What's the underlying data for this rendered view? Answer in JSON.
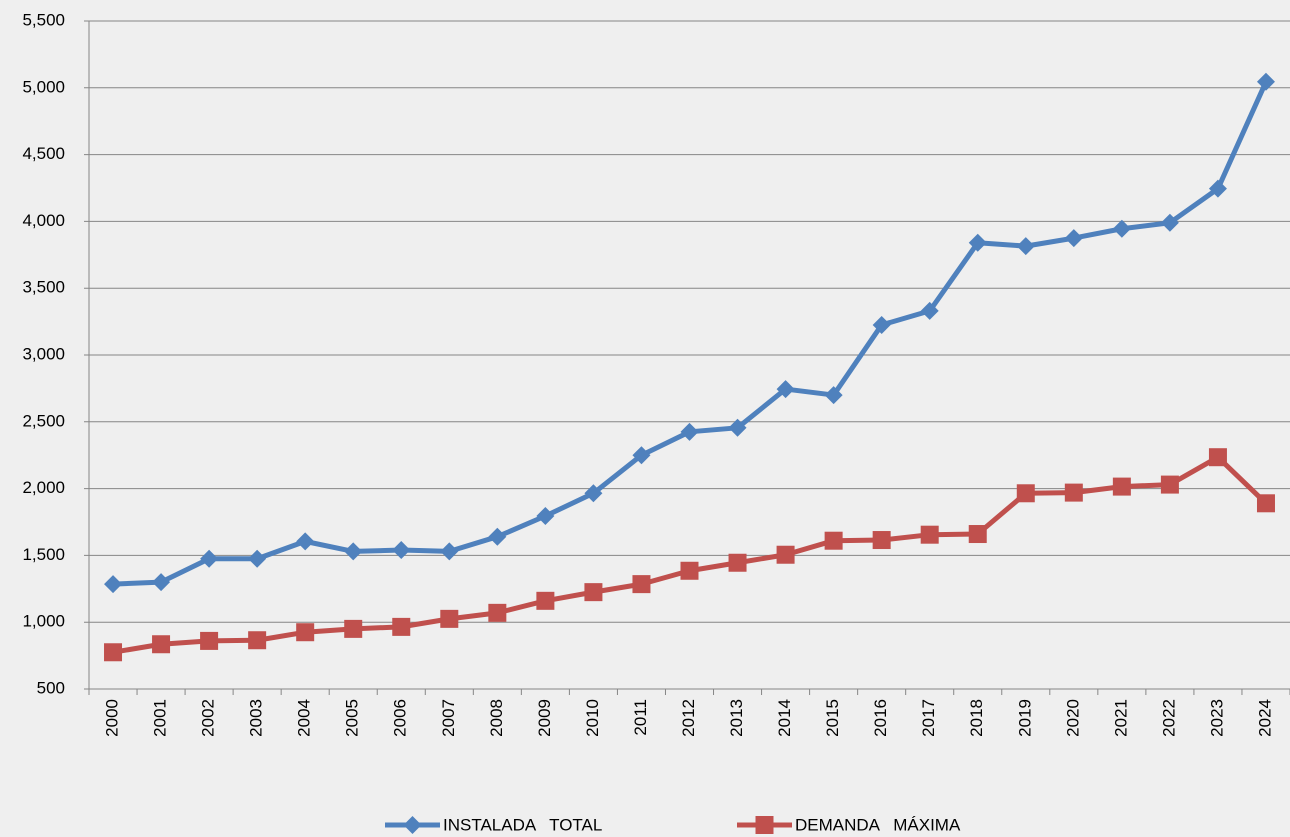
{
  "chart_data": {
    "type": "line",
    "categories": [
      "2000",
      "2001",
      "2002",
      "2003",
      "2004",
      "2005",
      "2006",
      "2007",
      "2008",
      "2009",
      "2010",
      "2011",
      "2012",
      "2013",
      "2014",
      "2015",
      "2016",
      "2017",
      "2018",
      "2019",
      "2020",
      "2021",
      "2022",
      "2023",
      "2024"
    ],
    "series": [
      {
        "name": "INSTALADA   TOTAL",
        "color": "#4f81bd",
        "marker": "diamond",
        "values": [
          1285,
          1300,
          1475,
          1475,
          1605,
          1530,
          1540,
          1530,
          1640,
          1795,
          1965,
          2250,
          2425,
          2455,
          2745,
          2700,
          3225,
          3330,
          3840,
          3815,
          3875,
          3945,
          3990,
          4245,
          5045
        ]
      },
      {
        "name": "DEMANDA   MÁXIMA",
        "color": "#c0504d",
        "marker": "square",
        "values": [
          775,
          835,
          860,
          865,
          925,
          950,
          965,
          1025,
          1070,
          1160,
          1225,
          1285,
          1385,
          1445,
          1505,
          1610,
          1615,
          1655,
          1660,
          1965,
          1970,
          2015,
          2030,
          2235,
          1890
        ]
      }
    ],
    "ylim": [
      500,
      5500
    ],
    "yticks": [
      {
        "value": 500,
        "label": "500"
      },
      {
        "value": 1000,
        "label": "1,000"
      },
      {
        "value": 1500,
        "label": "1,500"
      },
      {
        "value": 2000,
        "label": "2,000"
      },
      {
        "value": 2500,
        "label": "2,500"
      },
      {
        "value": 3000,
        "label": "3,000"
      },
      {
        "value": 3500,
        "label": "3,500"
      },
      {
        "value": 4000,
        "label": "4,000"
      },
      {
        "value": 4500,
        "label": "4,500"
      },
      {
        "value": 5000,
        "label": "5,000"
      },
      {
        "value": 5500,
        "label": "5,500"
      }
    ],
    "grid": true,
    "legend": "bottom"
  }
}
